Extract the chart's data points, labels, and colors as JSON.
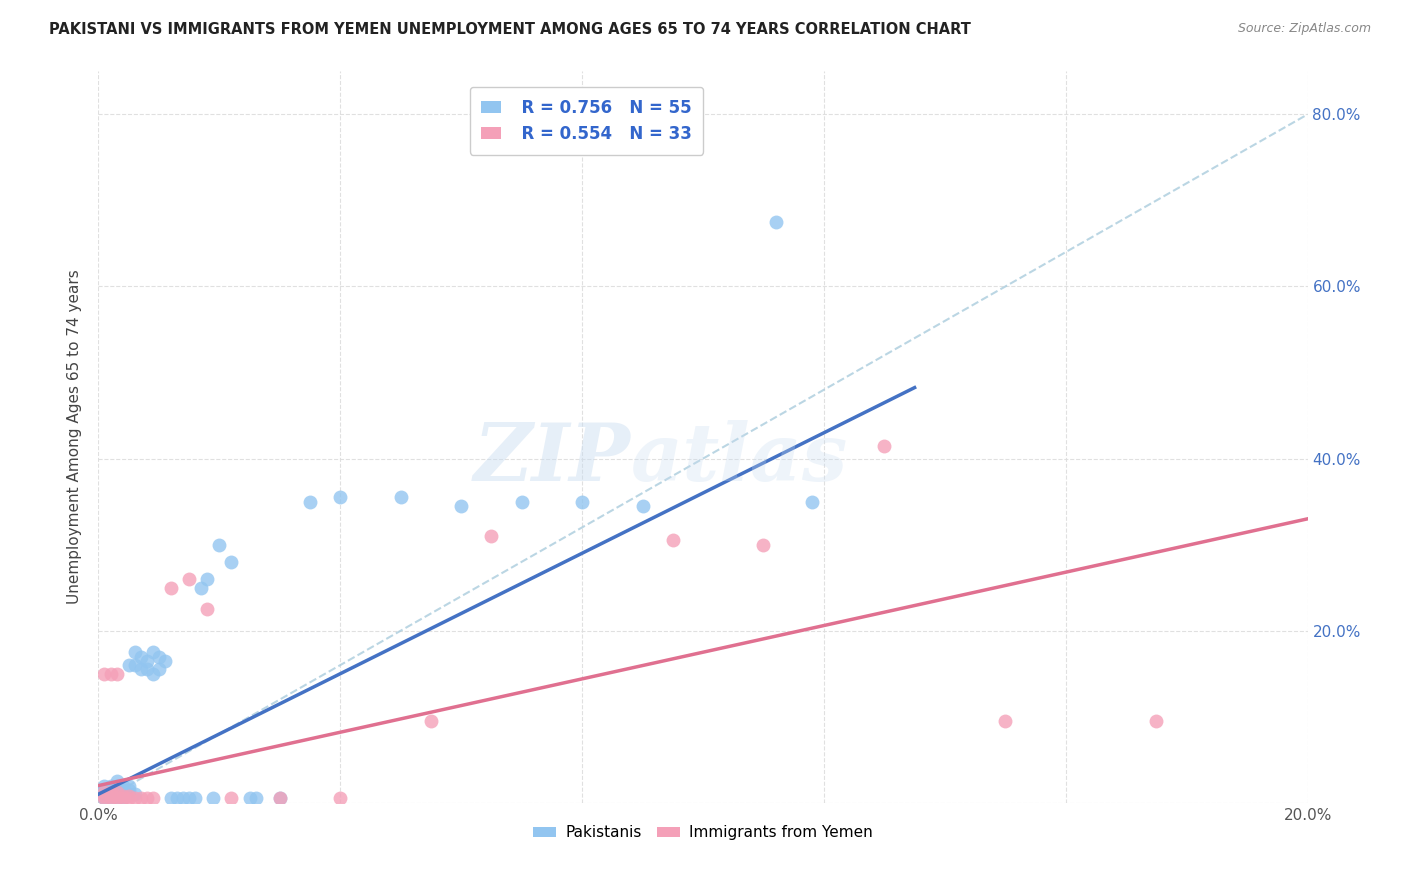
{
  "title": "PAKISTANI VS IMMIGRANTS FROM YEMEN UNEMPLOYMENT AMONG AGES 65 TO 74 YEARS CORRELATION CHART",
  "source": "Source: ZipAtlas.com",
  "ylabel": "Unemployment Among Ages 65 to 74 years",
  "xlim": [
    0.0,
    0.2
  ],
  "ylim": [
    0.0,
    0.85
  ],
  "legend_r1": "R = 0.756",
  "legend_n1": "N = 55",
  "legend_r2": "R = 0.554",
  "legend_n2": "N = 33",
  "legend_label1": "Pakistanis",
  "legend_label2": "Immigrants from Yemen",
  "color_blue": "#92C5F0",
  "color_pink": "#F4A0B8",
  "color_blue_line": "#4472C4",
  "color_pink_line": "#E07090",
  "color_dashed": "#AACCDD",
  "watermark_zip": "ZIP",
  "watermark_atlas": "atlas",
  "background_color": "#FFFFFF",
  "grid_color": "#DDDDDD",
  "pak_pts": [
    [
      0.001,
      0.005
    ],
    [
      0.001,
      0.01
    ],
    [
      0.001,
      0.015
    ],
    [
      0.001,
      0.02
    ],
    [
      0.002,
      0.005
    ],
    [
      0.002,
      0.01
    ],
    [
      0.002,
      0.015
    ],
    [
      0.002,
      0.02
    ],
    [
      0.003,
      0.005
    ],
    [
      0.003,
      0.01
    ],
    [
      0.003,
      0.015
    ],
    [
      0.003,
      0.02
    ],
    [
      0.003,
      0.025
    ],
    [
      0.004,
      0.005
    ],
    [
      0.004,
      0.01
    ],
    [
      0.004,
      0.015
    ],
    [
      0.004,
      0.02
    ],
    [
      0.005,
      0.01
    ],
    [
      0.005,
      0.015
    ],
    [
      0.005,
      0.02
    ],
    [
      0.005,
      0.16
    ],
    [
      0.006,
      0.01
    ],
    [
      0.006,
      0.16
    ],
    [
      0.006,
      0.175
    ],
    [
      0.007,
      0.155
    ],
    [
      0.007,
      0.17
    ],
    [
      0.008,
      0.155
    ],
    [
      0.008,
      0.165
    ],
    [
      0.009,
      0.15
    ],
    [
      0.009,
      0.175
    ],
    [
      0.01,
      0.155
    ],
    [
      0.01,
      0.17
    ],
    [
      0.011,
      0.165
    ],
    [
      0.012,
      0.005
    ],
    [
      0.013,
      0.005
    ],
    [
      0.014,
      0.005
    ],
    [
      0.015,
      0.005
    ],
    [
      0.016,
      0.005
    ],
    [
      0.017,
      0.25
    ],
    [
      0.018,
      0.26
    ],
    [
      0.019,
      0.005
    ],
    [
      0.02,
      0.3
    ],
    [
      0.022,
      0.28
    ],
    [
      0.025,
      0.005
    ],
    [
      0.026,
      0.005
    ],
    [
      0.03,
      0.005
    ],
    [
      0.035,
      0.35
    ],
    [
      0.04,
      0.355
    ],
    [
      0.05,
      0.355
    ],
    [
      0.06,
      0.345
    ],
    [
      0.07,
      0.35
    ],
    [
      0.08,
      0.35
    ],
    [
      0.09,
      0.345
    ],
    [
      0.112,
      0.675
    ],
    [
      0.118,
      0.35
    ]
  ],
  "yem_pts": [
    [
      0.001,
      0.005
    ],
    [
      0.001,
      0.008
    ],
    [
      0.001,
      0.012
    ],
    [
      0.001,
      0.15
    ],
    [
      0.002,
      0.005
    ],
    [
      0.002,
      0.008
    ],
    [
      0.002,
      0.012
    ],
    [
      0.002,
      0.15
    ],
    [
      0.003,
      0.005
    ],
    [
      0.003,
      0.008
    ],
    [
      0.003,
      0.012
    ],
    [
      0.003,
      0.15
    ],
    [
      0.004,
      0.005
    ],
    [
      0.004,
      0.008
    ],
    [
      0.005,
      0.005
    ],
    [
      0.005,
      0.008
    ],
    [
      0.006,
      0.005
    ],
    [
      0.007,
      0.005
    ],
    [
      0.008,
      0.005
    ],
    [
      0.009,
      0.005
    ],
    [
      0.012,
      0.25
    ],
    [
      0.015,
      0.26
    ],
    [
      0.018,
      0.225
    ],
    [
      0.022,
      0.005
    ],
    [
      0.03,
      0.005
    ],
    [
      0.04,
      0.005
    ],
    [
      0.055,
      0.095
    ],
    [
      0.065,
      0.31
    ],
    [
      0.095,
      0.305
    ],
    [
      0.11,
      0.3
    ],
    [
      0.13,
      0.415
    ],
    [
      0.15,
      0.095
    ],
    [
      0.175,
      0.095
    ]
  ]
}
